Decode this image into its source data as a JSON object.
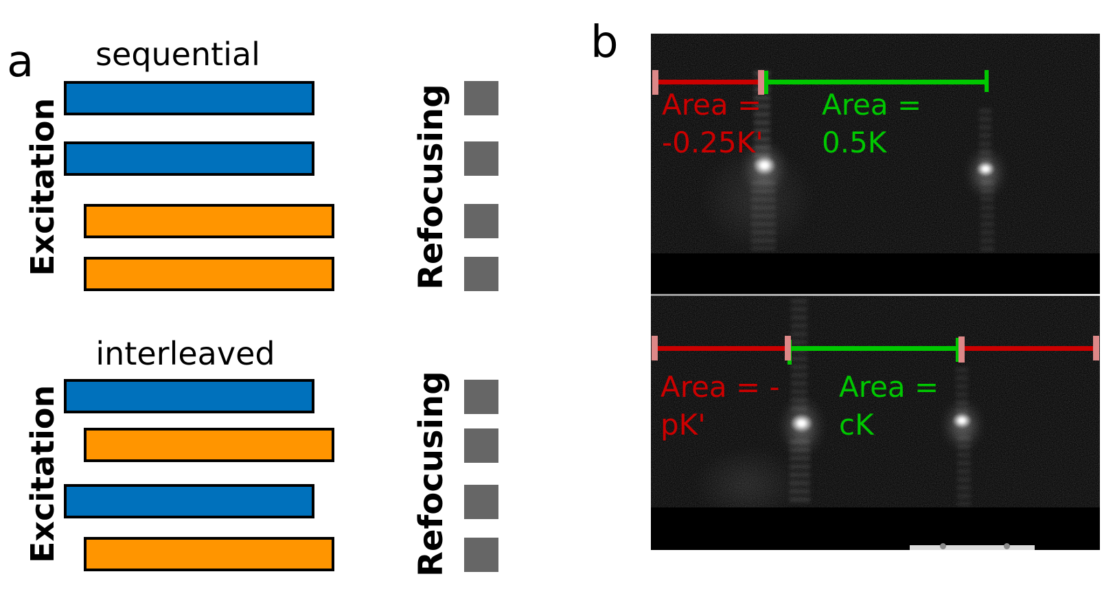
{
  "figure": {
    "panel_a": {
      "label": "a",
      "groups": [
        {
          "title": "sequential",
          "axis_label": "Excitation",
          "refocus_label": "Refocusing",
          "bars": [
            "blue",
            "blue",
            "orange",
            "orange"
          ],
          "square_count": 4
        },
        {
          "title": "interleaved",
          "axis_label": "Excitation",
          "refocus_label": "Refocusing",
          "bars": [
            "blue",
            "orange",
            "blue",
            "orange"
          ],
          "square_count": 4
        }
      ]
    },
    "panel_b": {
      "label": "b",
      "images": [
        {
          "red_annotation": {
            "line1": "Area =",
            "line2": "-0.25K'"
          },
          "green_annotation": {
            "line1": "Area =",
            "line2": "0.5K"
          }
        },
        {
          "red_annotation": {
            "line1": "Area = -",
            "line2": "pK'"
          },
          "green_annotation": {
            "line1": "Area =",
            "line2": "cK"
          }
        }
      ]
    },
    "colors": {
      "excitation_blue": "#0071bc",
      "excitation_orange": "#ff9500",
      "refocus_gray": "#666666",
      "annotation_red": "#cc0000",
      "annotation_green": "#00c800",
      "tick_pink": "#dd8888",
      "image_background": "#060606"
    }
  }
}
